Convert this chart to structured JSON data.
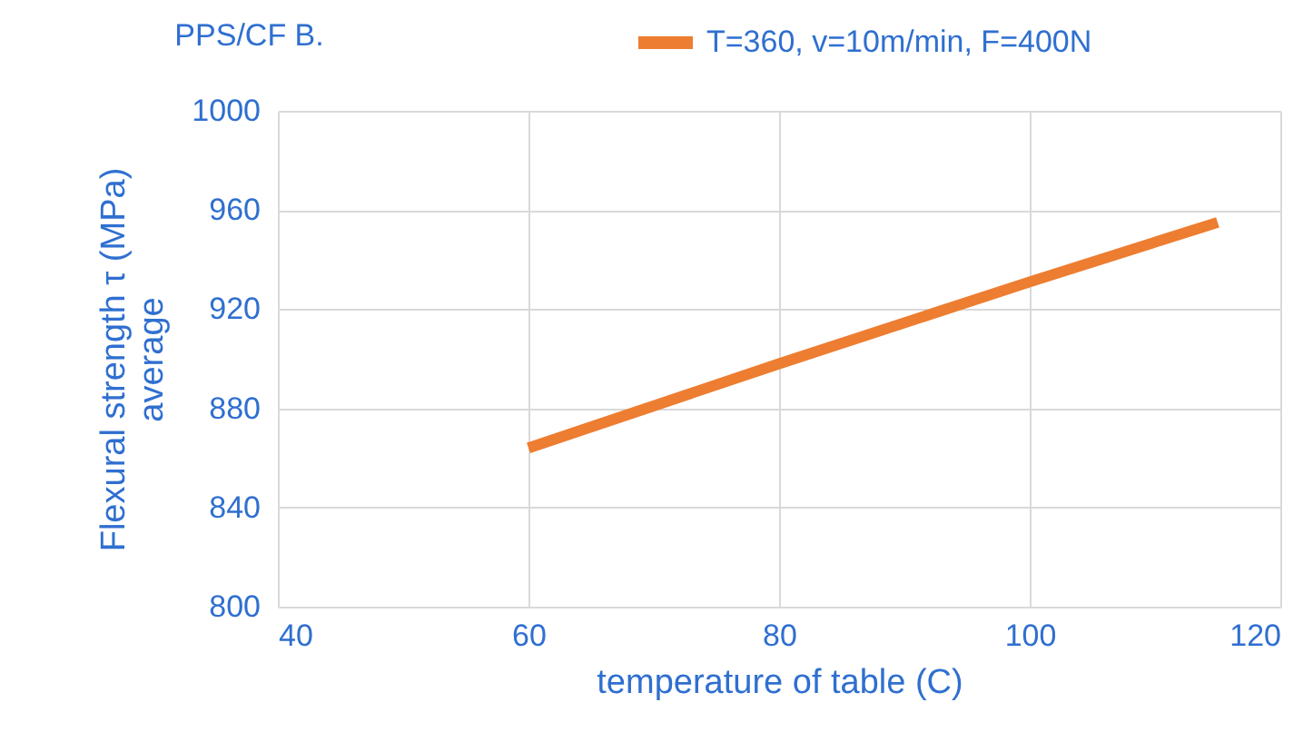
{
  "chart_data": {
    "type": "line",
    "title": "PPS/CF B.",
    "xlabel": "temperature of table (C)",
    "ylabel": "Flexural strength τ (MPa)\naverage",
    "x": [
      60,
      80,
      100,
      115
    ],
    "series": [
      {
        "name": "T=360, v=10m/min, F=400N",
        "color": "#ed7d31",
        "values": [
          864,
          898,
          931,
          955
        ]
      }
    ],
    "xlim": [
      40,
      120
    ],
    "xticks": [
      40,
      60,
      80,
      100,
      120
    ],
    "ylim": [
      800,
      1000
    ],
    "yticks": [
      800,
      840,
      880,
      920,
      960,
      1000
    ],
    "grid": true,
    "legend": "top",
    "marker": "none",
    "line_style": "solid"
  }
}
